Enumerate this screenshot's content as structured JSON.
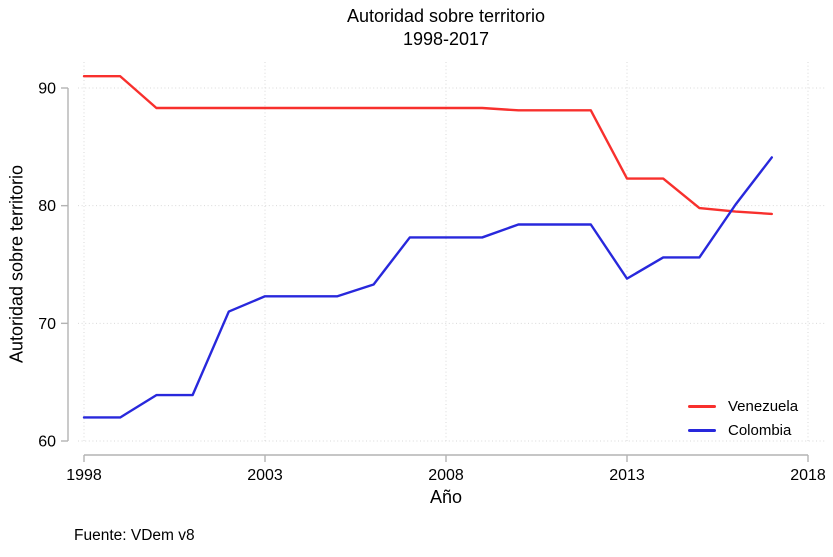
{
  "figure": {
    "title_line1": "Autoridad sobre territorio",
    "title_line2": "1998-2017",
    "x_axis_title": "Año",
    "y_axis_title": "Autoridad sobre territorio",
    "source_note": "Fuente: VDem v8"
  },
  "colors": {
    "venezuela": "#f8302d",
    "colombia": "#2828dc",
    "axis": "#b3b3b3",
    "grid": "#d9d9d9",
    "text": "#000000",
    "background": "#ffffff"
  },
  "chart_data": {
    "type": "line",
    "title": "Autoridad sobre territorio",
    "subtitle": "1998-2017",
    "xlabel": "Año",
    "ylabel": "Autoridad sobre territorio",
    "source": "Fuente: VDem v8",
    "x": [
      1998,
      1999,
      2000,
      2001,
      2002,
      2003,
      2004,
      2005,
      2006,
      2007,
      2008,
      2009,
      2010,
      2011,
      2012,
      2013,
      2014,
      2015,
      2016,
      2017
    ],
    "series": [
      {
        "name": "Venezuela",
        "color": "#f8302d",
        "values": [
          91.0,
          91.0,
          88.3,
          88.3,
          88.3,
          88.3,
          88.3,
          88.3,
          88.3,
          88.3,
          88.3,
          88.3,
          88.1,
          88.1,
          88.1,
          82.3,
          82.3,
          79.8,
          79.5,
          79.3
        ]
      },
      {
        "name": "Colombia",
        "color": "#2828dc",
        "values": [
          62.0,
          62.0,
          63.9,
          63.9,
          71.0,
          72.3,
          72.3,
          72.3,
          73.3,
          77.3,
          77.3,
          77.3,
          78.4,
          78.4,
          78.4,
          73.8,
          75.6,
          75.6,
          80.1,
          84.1
        ]
      }
    ],
    "x_ticks": [
      1998,
      2003,
      2008,
      2013,
      2018
    ],
    "y_ticks": [
      60,
      70,
      80,
      90
    ],
    "xlim": [
      1998,
      2018
    ],
    "ylim": [
      60,
      90
    ],
    "grid": true,
    "grid_style": "dotted",
    "legend_position": "bottom-right"
  }
}
